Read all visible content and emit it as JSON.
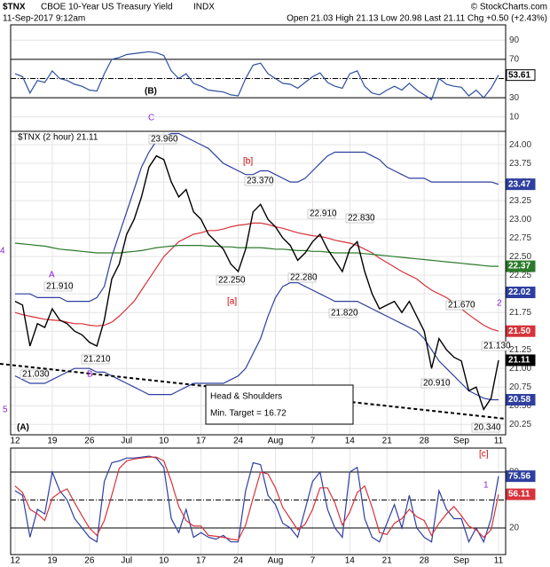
{
  "header": {
    "symbol": "$TNX",
    "name": "CBOE 10-Year US Treasury Yield",
    "exchange": "INDX",
    "source": "© StockCharts.com",
    "date": "11-Sep-2017 9:12am",
    "quote": "Open 21.03 High 21.13 Low 20.98 Last 21.11 Chg +0.50 (+2.43%)"
  },
  "annotations": [
    {
      "text": "(B)",
      "color": "#000000"
    },
    {
      "text": "C",
      "color": "#8a1ed6"
    },
    {
      "text": "[b]",
      "color": "#cc0000"
    },
    {
      "text": "[a]",
      "color": "#cc0000"
    },
    {
      "text": "A",
      "color": "#8a1ed6"
    },
    {
      "text": "B",
      "color": "#8a1ed6"
    },
    {
      "text": "4",
      "color": "#8a1ed6"
    },
    {
      "text": "5",
      "color": "#8a1ed6"
    },
    {
      "text": "(A)",
      "color": "#000000"
    },
    {
      "text": "2",
      "color": "#8a1ed6"
    },
    {
      "text": "[c]",
      "color": "#cc0000"
    },
    {
      "text": "1",
      "color": "#8a1ed6"
    }
  ],
  "chart_data": [
    {
      "type": "line",
      "ylim": [
        -5,
        106
      ],
      "yticks": [
        10,
        30,
        50,
        70,
        90
      ],
      "ref_lines": [
        30,
        50,
        70
      ],
      "series": [
        {
          "color": "#2e4f9e",
          "values": [
            55,
            52,
            35,
            48,
            46,
            58,
            50,
            48,
            44,
            42,
            38,
            37,
            55,
            70,
            72,
            75,
            76,
            77,
            78,
            77,
            74,
            58,
            50,
            55,
            45,
            42,
            38,
            37,
            36,
            33,
            32,
            50,
            64,
            66,
            55,
            50,
            45,
            44,
            40,
            46,
            52,
            56,
            46,
            42,
            40,
            55,
            58,
            42,
            35,
            33,
            38,
            42,
            38,
            45,
            38,
            33,
            28,
            50,
            44,
            42,
            41,
            32,
            38,
            30,
            40,
            53.61
          ]
        }
      ],
      "last_labels": [
        {
          "value": 53.61,
          "label": "53.61",
          "color": "#ffffff"
        }
      ]
    },
    {
      "type": "line",
      "legend": "$TNX (2 hour) 21.11",
      "ylim": [
        20.11,
        24.18
      ],
      "yticks": [
        20.25,
        {
          "value": 20.5,
          "label": "20.50"
        },
        20.75,
        {
          "value": 21,
          "label": "21.00"
        },
        21.25,
        {
          "value": 21.5,
          "label": "21.50"
        },
        21.75,
        {
          "value": 22,
          "label": "22.00"
        },
        22.25,
        {
          "value": 22.5,
          "label": "22.50"
        },
        22.75,
        {
          "value": 23,
          "label": "23.00"
        },
        23.25,
        {
          "value": 23.5,
          "label": "23.50"
        },
        23.75,
        {
          "value": 24,
          "label": "24.00"
        }
      ],
      "categories": [
        "12",
        null,
        null,
        null,
        null,
        "19",
        null,
        null,
        null,
        null,
        "26",
        null,
        null,
        null,
        null,
        "Jul",
        null,
        null,
        null,
        null,
        "10",
        null,
        null,
        null,
        null,
        "17",
        null,
        null,
        null,
        null,
        "24",
        null,
        null,
        null,
        null,
        "Aug",
        null,
        null,
        null,
        null,
        "7",
        null,
        null,
        null,
        null,
        "14",
        null,
        null,
        null,
        null,
        "21",
        null,
        null,
        null,
        null,
        "28",
        null,
        null,
        null,
        null,
        "Sep",
        null,
        null,
        null,
        null,
        "11"
      ],
      "series": [
        {
          "color": "#2e3fa0",
          "values": [
            22.0,
            22.0,
            22.0,
            21.95,
            21.95,
            21.95,
            21.95,
            21.9,
            21.9,
            21.9,
            21.9,
            21.95,
            22.1,
            22.5,
            22.8,
            23.1,
            23.4,
            23.7,
            23.9,
            24.05,
            24.1,
            24.15,
            24.15,
            24.1,
            24.05,
            24.0,
            23.95,
            23.85,
            23.75,
            23.7,
            23.65,
            23.6,
            23.6,
            23.65,
            23.65,
            23.6,
            23.55,
            23.5,
            23.5,
            23.55,
            23.65,
            23.75,
            23.85,
            23.9,
            23.9,
            23.9,
            23.9,
            23.9,
            23.85,
            23.8,
            23.7,
            23.65,
            23.6,
            23.55,
            23.55,
            23.55,
            23.5,
            23.5,
            23.5,
            23.5,
            23.5,
            23.5,
            23.5,
            23.5,
            23.5,
            23.47
          ]
        },
        {
          "color": "#2e3fa0",
          "values": [
            20.9,
            20.85,
            20.8,
            20.8,
            20.8,
            20.85,
            20.9,
            20.95,
            21.0,
            21.0,
            21.0,
            20.95,
            20.95,
            20.9,
            20.85,
            20.8,
            20.75,
            20.7,
            20.65,
            20.65,
            20.65,
            20.65,
            20.7,
            20.75,
            20.8,
            20.8,
            20.8,
            20.8,
            20.8,
            20.85,
            20.9,
            21.0,
            21.2,
            21.4,
            21.7,
            21.95,
            22.1,
            22.15,
            22.15,
            22.1,
            22.05,
            22.0,
            21.95,
            21.9,
            21.9,
            21.9,
            21.9,
            21.85,
            21.8,
            21.75,
            21.7,
            21.65,
            21.6,
            21.55,
            21.5,
            21.4,
            21.25,
            21.1,
            21.0,
            20.9,
            20.8,
            20.7,
            20.65,
            20.6,
            20.58,
            20.58
          ]
        },
        {
          "color": "#d6333b",
          "values": [
            21.75,
            21.72,
            21.7,
            21.68,
            21.66,
            21.65,
            21.64,
            21.62,
            21.6,
            21.6,
            21.58,
            21.57,
            21.58,
            21.62,
            21.7,
            21.8,
            21.9,
            22.05,
            22.2,
            22.35,
            22.5,
            22.6,
            22.7,
            22.75,
            22.8,
            22.82,
            22.85,
            22.85,
            22.87,
            22.9,
            22.92,
            22.93,
            22.95,
            22.95,
            22.93,
            22.9,
            22.88,
            22.85,
            22.82,
            22.8,
            22.78,
            22.77,
            22.75,
            22.72,
            22.7,
            22.68,
            22.65,
            22.6,
            22.55,
            22.48,
            22.42,
            22.36,
            22.3,
            22.25,
            22.2,
            22.12,
            22.05,
            22.0,
            21.95,
            21.88,
            21.8,
            21.72,
            21.65,
            21.58,
            21.53,
            21.5
          ]
        },
        {
          "color": "#2a7a2a",
          "values": [
            22.68,
            22.67,
            22.66,
            22.65,
            22.64,
            22.62,
            22.6,
            22.59,
            22.58,
            22.57,
            22.56,
            22.55,
            22.55,
            22.55,
            22.55,
            22.56,
            22.57,
            22.58,
            22.6,
            22.62,
            22.63,
            22.64,
            22.65,
            22.65,
            22.65,
            22.65,
            22.64,
            22.64,
            22.63,
            22.63,
            22.62,
            22.62,
            22.62,
            22.62,
            22.61,
            22.6,
            22.6,
            22.59,
            22.58,
            22.58,
            22.57,
            22.57,
            22.56,
            22.55,
            22.55,
            22.55,
            22.55,
            22.54,
            22.53,
            22.52,
            22.51,
            22.5,
            22.49,
            22.48,
            22.47,
            22.46,
            22.45,
            22.44,
            22.43,
            22.42,
            22.41,
            22.4,
            22.39,
            22.38,
            22.37,
            22.37
          ]
        },
        {
          "color": "#000000",
          "values": [
            21.9,
            21.85,
            21.3,
            21.6,
            21.55,
            21.8,
            21.65,
            21.6,
            21.5,
            21.45,
            21.35,
            21.3,
            21.65,
            22.2,
            22.4,
            22.8,
            23.0,
            23.3,
            23.7,
            23.85,
            23.8,
            23.5,
            23.3,
            23.4,
            23.1,
            23.0,
            22.8,
            22.7,
            22.6,
            22.4,
            22.3,
            22.6,
            23.1,
            23.2,
            23.0,
            22.9,
            22.75,
            22.65,
            22.45,
            22.55,
            22.7,
            22.8,
            22.6,
            22.45,
            22.3,
            22.6,
            22.7,
            22.3,
            22.0,
            21.8,
            21.85,
            21.9,
            21.75,
            21.9,
            21.7,
            21.5,
            21.0,
            21.4,
            21.25,
            21.15,
            21.1,
            20.7,
            20.75,
            20.45,
            20.6,
            21.11
          ]
        }
      ],
      "price_labels": [
        {
          "value": 23.96,
          "label": "23.960"
        },
        {
          "value": 23.37,
          "label": "23.370"
        },
        {
          "value": 22.91,
          "label": "22.910"
        },
        {
          "value": 22.83,
          "label": "22.830"
        },
        {
          "value": 22.25,
          "label": "22.250"
        },
        {
          "value": 22.28,
          "label": "22.280"
        },
        {
          "value": 21.91,
          "label": "21.910"
        },
        {
          "value": 21.82,
          "label": "21.820"
        },
        {
          "value": 21.67,
          "label": "21.670"
        },
        {
          "value": 21.21,
          "label": "21.210"
        },
        {
          "value": 21.03,
          "label": "21.030"
        },
        {
          "value": 20.91,
          "label": "20.910"
        },
        {
          "value": 20.34,
          "label": "20.340"
        },
        {
          "value": 21.13,
          "label": "21.130"
        }
      ],
      "last_labels": [
        {
          "value": 23.47,
          "label": "23.47",
          "color": "#2e3fa0"
        },
        {
          "value": 22.37,
          "label": "22.37",
          "color": "#2a7a2a"
        },
        {
          "value": 22.02,
          "label": "22.02",
          "color": "#2e3fa0"
        },
        {
          "value": 21.5,
          "label": "21.50",
          "color": "#d6333b"
        },
        {
          "value": 21.11,
          "label": "21.11",
          "color": "#000000"
        },
        {
          "value": 20.58,
          "label": "20.58",
          "color": "#2e3fa0"
        }
      ],
      "callout": [
        "Head & Shoulders",
        "Min. Target = 16.72"
      ]
    },
    {
      "type": "line",
      "ylim": [
        -8.6,
        105.7
      ],
      "yticks": [
        20,
        80
      ],
      "ref_lines": [
        20,
        50,
        80
      ],
      "categories": [
        "12",
        null,
        null,
        null,
        null,
        "19",
        null,
        null,
        null,
        null,
        "26",
        null,
        null,
        null,
        null,
        "Jul",
        null,
        null,
        null,
        null,
        "10",
        null,
        null,
        null,
        null,
        "17",
        null,
        null,
        null,
        null,
        "24",
        null,
        null,
        null,
        null,
        "Aug",
        null,
        null,
        null,
        null,
        "7",
        null,
        null,
        null,
        null,
        "14",
        null,
        null,
        null,
        null,
        "21",
        null,
        null,
        null,
        null,
        "28",
        null,
        null,
        null,
        null,
        "Sep",
        null,
        null,
        null,
        null,
        "11"
      ],
      "series": [
        {
          "color": "#2e3fa0",
          "values": [
            60,
            55,
            10,
            40,
            35,
            80,
            60,
            50,
            30,
            20,
            10,
            5,
            70,
            90,
            92,
            95,
            95,
            96,
            97,
            95,
            85,
            30,
            15,
            40,
            10,
            15,
            10,
            8,
            12,
            5,
            5,
            60,
            90,
            88,
            55,
            45,
            25,
            20,
            10,
            40,
            70,
            80,
            40,
            20,
            10,
            80,
            85,
            30,
            10,
            5,
            25,
            45,
            20,
            55,
            20,
            10,
            5,
            60,
            40,
            30,
            30,
            5,
            20,
            5,
            30,
            75.56
          ]
        },
        {
          "color": "#d6333b",
          "values": [
            65,
            58,
            40,
            35,
            28,
            52,
            58,
            62,
            47,
            33,
            20,
            12,
            28,
            55,
            84,
            92,
            94,
            95,
            96,
            96,
            92,
            70,
            43,
            28,
            22,
            22,
            12,
            11,
            10,
            8,
            7,
            23,
            52,
            80,
            78,
            63,
            42,
            30,
            18,
            24,
            40,
            63,
            63,
            47,
            23,
            37,
            58,
            65,
            42,
            15,
            13,
            25,
            30,
            40,
            32,
            28,
            12,
            25,
            35,
            43,
            33,
            22,
            18,
            10,
            18,
            56.11
          ]
        }
      ],
      "last_labels": [
        {
          "value": 75.56,
          "label": "75.56",
          "color": "#2e3fa0"
        },
        {
          "value": 56.11,
          "label": "56.11",
          "color": "#d6333b"
        }
      ]
    }
  ]
}
